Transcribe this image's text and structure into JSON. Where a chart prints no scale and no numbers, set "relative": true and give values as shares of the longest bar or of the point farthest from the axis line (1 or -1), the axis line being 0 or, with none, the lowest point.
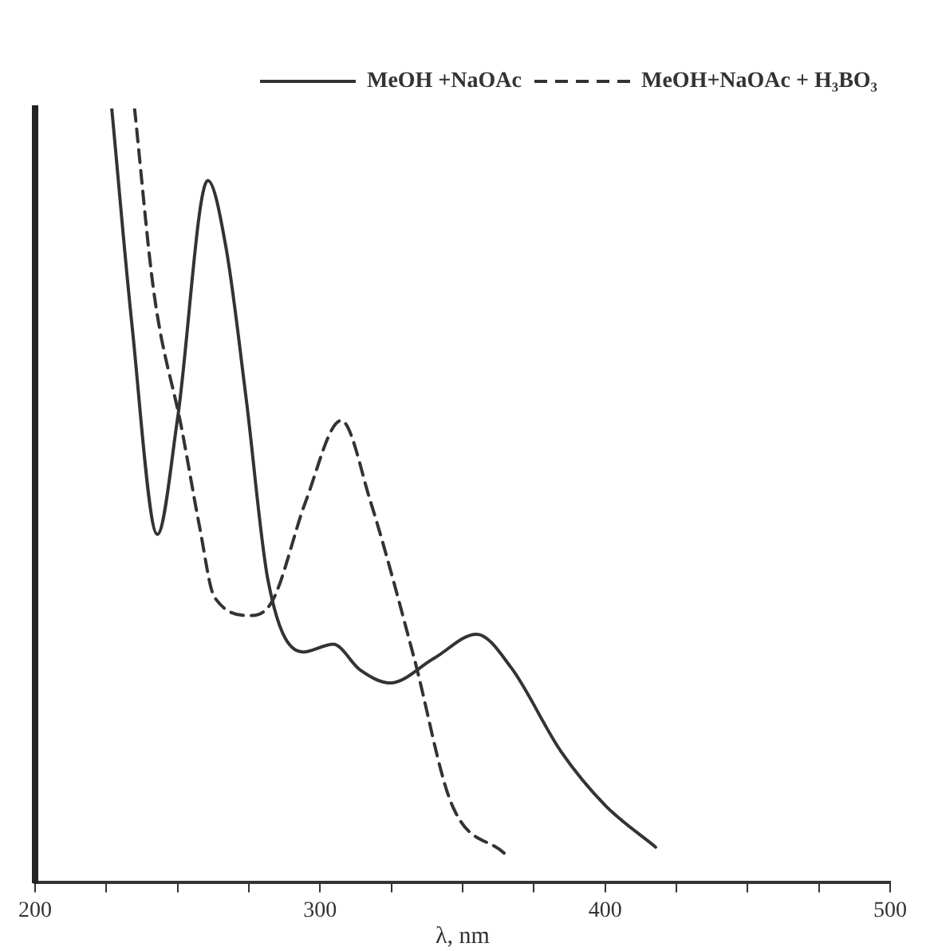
{
  "chart_data": {
    "type": "line",
    "relative": true,
    "xlabel": "λ, nm",
    "xlim": [
      200,
      500
    ],
    "xticks": [
      200,
      {
        "value": 225,
        "label": null
      },
      {
        "value": 250,
        "label": null
      },
      {
        "value": 275,
        "label": null
      },
      300,
      {
        "value": 325,
        "label": null
      },
      {
        "value": 350,
        "label": null
      },
      {
        "value": 375,
        "label": null
      },
      400,
      {
        "value": 425,
        "label": null
      },
      {
        "value": 450,
        "label": null
      },
      {
        "value": 475,
        "label": null
      },
      500
    ],
    "legend": "top right",
    "grid": false,
    "marker": "none",
    "series": [
      {
        "name": "MeOH +NaOAc",
        "color": "#333333",
        "line_style": "solid",
        "x": [
          226.9,
          234,
          242.9,
          250,
          260.6,
          267,
          274,
          281.7,
          294,
          304.6,
          314,
          324.6,
          340,
          354.9,
          367,
          384.6,
          400,
          417.7
        ],
        "values": [
          1.0,
          0.72,
          0.45,
          0.6,
          0.907,
          0.82,
          0.627,
          0.391,
          0.298,
          0.308,
          0.275,
          0.258,
          0.29,
          0.321,
          0.278,
          0.169,
          0.1,
          0.046
        ]
      },
      {
        "name": "MeOH+NaOAc + H₃BO₃",
        "color": "#333333",
        "line_style": "dashed",
        "x": [
          234.9,
          241.7,
          251.4,
          257.7,
          262.9,
          276,
          283.4,
          294.9,
          307.4,
          317.7,
          333,
          346,
          364.6
        ],
        "values": [
          1.0,
          0.762,
          0.587,
          0.46,
          0.369,
          0.345,
          0.365,
          0.492,
          0.597,
          0.492,
          0.29,
          0.103,
          0.038
        ]
      }
    ]
  }
}
